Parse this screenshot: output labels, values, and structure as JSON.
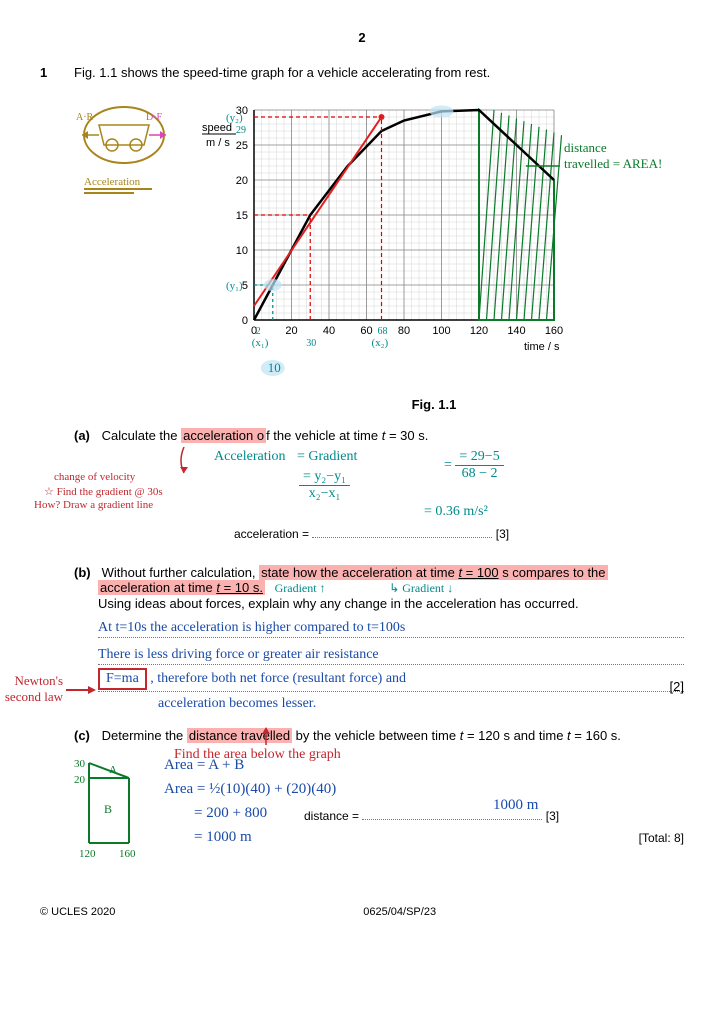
{
  "page_number": "2",
  "question_number": "1",
  "intro": "Fig. 1.1 shows the speed-time graph for a vehicle accelerating from rest.",
  "graph": {
    "y_label_top": "speed",
    "y_label_bottom": "m / s",
    "x_label": "time / s",
    "y_ticks": [
      "0",
      "5",
      "10",
      "15",
      "20",
      "25",
      "30"
    ],
    "x_ticks": [
      "0",
      "20",
      "40",
      "60",
      "80",
      "100",
      "120",
      "140",
      "160"
    ],
    "curve_points": [
      [
        0,
        0
      ],
      [
        10,
        5
      ],
      [
        30,
        15
      ],
      [
        50,
        22
      ],
      [
        68,
        27
      ],
      [
        80,
        28.5
      ],
      [
        100,
        29.8
      ],
      [
        120,
        30
      ],
      [
        140,
        25
      ],
      [
        160,
        20
      ]
    ],
    "tangent_points": [
      [
        0,
        2
      ],
      [
        68,
        29
      ]
    ],
    "annotations": {
      "y1_label": "(y₁)",
      "y2_label": "(y₂)",
      "y2_val": "29",
      "x1_label": "(x₁)",
      "x1_val": "2",
      "x2_label": "(x₂)",
      "x2_val": "68",
      "thirty": "30",
      "ten_label": "10",
      "area_label": "distance\ntravelled = AREA!"
    },
    "caption": "Fig. 1.1"
  },
  "side_sketch": {
    "label_left": "A·R",
    "label_right": "D·F",
    "label_bottom": "Acceleration"
  },
  "part_a": {
    "label": "(a)",
    "text_before": "Calculate the ",
    "highlight": "acceleration o",
    "text_after": "f the vehicle at time ",
    "italic_t": "t",
    "text_end": " = 30 s.",
    "hw_red_1": "change of velocity",
    "hw_red_2": "☆ Find the gradient @ 30s",
    "hw_red_3": "How? Draw a gradient line",
    "hw_teal_1": "Acceleration",
    "hw_teal_2": "= Gradient",
    "hw_teal_3": "= y₂−y₁",
    "hw_teal_4": "x₂−x₁",
    "hw_teal_5": "= 29−5",
    "hw_teal_6": "68 − 2",
    "hw_teal_7": "= 0.36 m/s²",
    "blank_label": "acceleration =",
    "marks": "[3]"
  },
  "part_b": {
    "label": "(b)",
    "line1_a": "Without further calculation, ",
    "line1_hl": "state how the acceleration at time ",
    "line1_t1": "t",
    "line1_b": " = 100",
    "line1_c": " s compares to the",
    "line2_hl": "acceleration at time ",
    "line2_t2": "t",
    "line2_b": " = 10 s.",
    "line3": "Using ideas about forces, explain why any change in the acceleration has occurred.",
    "hw_teal_grad_up": "Gradient ↑",
    "hw_teal_grad_down": "↳ Gradient ↓",
    "hw_ans_1": "At t=10s the acceleration is higher compared to t=100s",
    "hw_ans_2": "There is less driving force or greater air resistance",
    "hw_ans_3": ", therefore both net force (resultant force) and",
    "hw_ans_4": "acceleration becomes lesser.",
    "newton_label": "Newton's second law",
    "formula": "F=ma",
    "marks": "[2]"
  },
  "part_c": {
    "label": "(c)",
    "text_a": "Determine the ",
    "highlight": "distance travelled",
    "text_b": " by the vehicle between time ",
    "t1": "t",
    "text_c": " = 120 s and time ",
    "t2": "t",
    "text_d": " = 160 s.",
    "hw_red": "Find the area below the graph",
    "sketch": {
      "a_y": "30",
      "b_y": "20",
      "a_x": "120",
      "b_x": "160",
      "A": "A",
      "B": "B"
    },
    "hw_work_1": "Area = A + B",
    "hw_work_2": "Area = ½(10)(40) + (20)(40)",
    "hw_work_3": "= 200 + 800",
    "hw_work_4": "= 1000 m",
    "blank_label": "distance =",
    "answer": "1000 m",
    "marks": "[3]",
    "total": "[Total: 8]"
  },
  "footer": {
    "left": "© UCLES 2020",
    "center": "0625/04/SP/23"
  }
}
